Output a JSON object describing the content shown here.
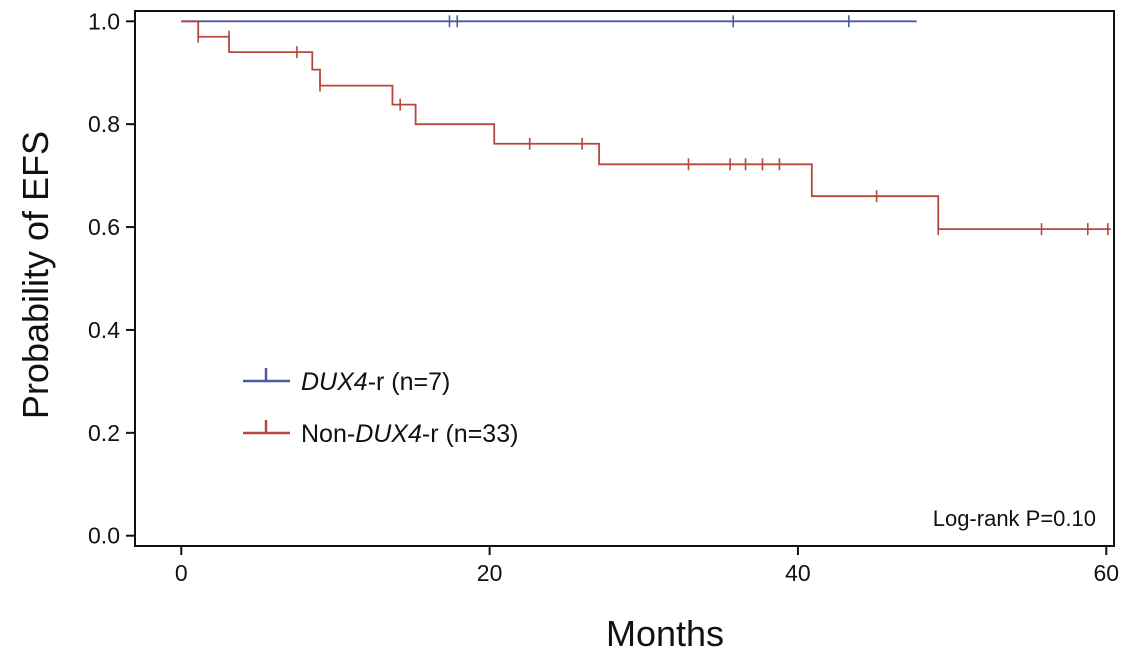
{
  "chart_data": {
    "type": "line",
    "subtype": "kaplan-meier",
    "xlabel": "Months",
    "ylabel": "Probability of EFS",
    "xlim": [
      -3,
      60.5
    ],
    "ylim": [
      -0.02,
      1.02
    ],
    "xticks": [
      0,
      20,
      40,
      60
    ],
    "yticks": [
      0.0,
      0.2,
      0.4,
      0.6,
      0.8,
      1.0
    ],
    "grid": false,
    "legend_position": "left-center",
    "annotation": "Log-rank P=0.10",
    "series": [
      {
        "legend_label": {
          "italic": "DUX4",
          "rest": "-r (n=7)"
        },
        "color": "#4a5a9e",
        "steps": [
          [
            0,
            1.0
          ],
          [
            47.7,
            1.0
          ]
        ],
        "censors": [
          [
            17.4,
            1.0
          ],
          [
            17.9,
            1.0
          ],
          [
            35.8,
            1.0
          ],
          [
            43.3,
            1.0
          ]
        ]
      },
      {
        "legend_label": {
          "prefix": "Non-",
          "italic": "DUX4",
          "rest": "-r (n=33)"
        },
        "color": "#b5483c",
        "steps": [
          [
            0,
            1.0
          ],
          [
            1.1,
            0.97
          ],
          [
            3.1,
            0.94
          ],
          [
            8.5,
            0.906
          ],
          [
            9.0,
            0.875
          ],
          [
            13.7,
            0.838
          ],
          [
            15.2,
            0.8
          ],
          [
            20.3,
            0.762
          ],
          [
            27.1,
            0.722
          ],
          [
            40.9,
            0.66
          ],
          [
            49.1,
            0.596
          ],
          [
            60.3,
            0.596
          ]
        ],
        "censors": [
          [
            1.1,
            0.97
          ],
          [
            3.1,
            0.97
          ],
          [
            7.5,
            0.94
          ],
          [
            9.0,
            0.875
          ],
          [
            14.2,
            0.838
          ],
          [
            22.6,
            0.762
          ],
          [
            26.0,
            0.762
          ],
          [
            32.9,
            0.722
          ],
          [
            35.6,
            0.722
          ],
          [
            36.6,
            0.722
          ],
          [
            37.7,
            0.722
          ],
          [
            38.8,
            0.722
          ],
          [
            45.1,
            0.66
          ],
          [
            49.1,
            0.596
          ],
          [
            55.8,
            0.596
          ],
          [
            58.8,
            0.596
          ],
          [
            60.1,
            0.596
          ]
        ]
      }
    ]
  }
}
